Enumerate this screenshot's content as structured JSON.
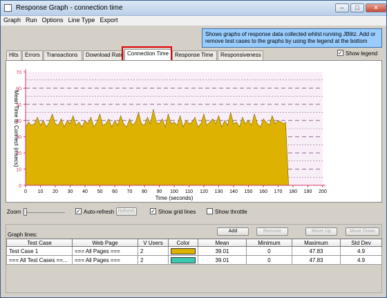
{
  "window": {
    "title": "Response Graph - connection time",
    "controls": [
      "–",
      "□",
      "✕"
    ]
  },
  "menu": [
    "Graph",
    "Run",
    "Options",
    "Line Type",
    "Export"
  ],
  "info_text": "Shows graphs of response data collected whilst running JBlitz. Add or remove test cases to the graphs by using the legend at the bottom",
  "tabs": [
    "Hits",
    "Errors",
    "Transactions",
    "Download Rate",
    "Connection Time",
    "Response Time",
    "Responsiveness"
  ],
  "active_tab": "Connection Time",
  "show_legend": {
    "label": "Show legend",
    "checked": true
  },
  "chart_data": {
    "type": "area",
    "xlabel": "Time (seconds)",
    "ylabel": "Mean Time to Connect (msecs)",
    "xlim": [
      0,
      200
    ],
    "ylim": [
      0,
      70
    ],
    "xticks": [
      0,
      10,
      20,
      30,
      40,
      50,
      60,
      70,
      80,
      90,
      100,
      110,
      120,
      130,
      140,
      150,
      160,
      170,
      180,
      190,
      200
    ],
    "yticks": [
      0,
      10,
      20,
      30,
      40,
      50,
      60,
      70
    ],
    "grid": true,
    "colors": {
      "fill": "#ddb200",
      "stroke": "#7a6000",
      "plot_bg": "#f8eef8",
      "grid": "#8a6a8a",
      "axis": "#cc3366"
    },
    "series": [
      {
        "name": "",
        "x": [
          0,
          2,
          4,
          6,
          8,
          10,
          12,
          14,
          16,
          18,
          20,
          22,
          24,
          26,
          28,
          30,
          32,
          34,
          36,
          38,
          40,
          42,
          44,
          46,
          48,
          50,
          52,
          54,
          56,
          58,
          60,
          62,
          64,
          66,
          68,
          70,
          72,
          74,
          76,
          78,
          80,
          82,
          84,
          86,
          88,
          90,
          92,
          94,
          96,
          98,
          100,
          102,
          104,
          106,
          108,
          110,
          112,
          114,
          116,
          118,
          120,
          122,
          124,
          126,
          128,
          130,
          132,
          134,
          136,
          138,
          140,
          142,
          144,
          146,
          148,
          150,
          152,
          154,
          156,
          158,
          160,
          162,
          164,
          166,
          168,
          170,
          172,
          174,
          175,
          177
        ],
        "values": [
          36,
          39,
          37,
          38,
          42,
          37,
          40,
          36,
          39,
          44,
          38,
          37,
          41,
          36,
          40,
          38,
          43,
          37,
          39,
          36,
          40,
          38,
          42,
          36,
          39,
          44,
          37,
          38,
          41,
          36,
          40,
          37,
          43,
          38,
          36,
          41,
          37,
          39,
          45,
          38,
          37,
          42,
          38,
          47,
          39,
          38,
          41,
          36,
          44,
          38,
          39,
          37,
          43,
          36,
          40,
          38,
          39,
          42,
          36,
          38,
          44,
          37,
          39,
          41,
          38,
          43,
          36,
          40,
          37,
          45,
          38,
          39,
          36,
          42,
          38,
          40,
          37,
          44,
          38,
          36,
          41,
          39,
          37,
          43,
          38,
          40,
          39,
          38,
          39,
          0
        ]
      }
    ]
  },
  "controls": {
    "zoom_label": "Zoom",
    "auto_refresh": {
      "label": "Auto-refresh",
      "checked": true
    },
    "refresh_button": "Refresh",
    "show_grid_lines": {
      "label": "Show grid lines",
      "checked": true
    },
    "show_throttle": {
      "label": "Show throttle",
      "checked": false
    }
  },
  "graph_lines": {
    "label": "Graph lines:",
    "buttons": {
      "add": "Add",
      "remove": "Remove",
      "move_up": "Move Up",
      "move_down": "Move Down"
    },
    "columns": [
      "Test Case",
      "Web Page",
      "V Users",
      "Color",
      "Mean",
      "Minimum",
      "Maximum",
      "Std Dev"
    ],
    "rows": [
      {
        "test_case": "Test Case 1",
        "web_page": "=== All Pages ===",
        "v_users": "2",
        "color": "#ddb200",
        "mean": "39.01",
        "minimum": "0",
        "maximum": "47.83",
        "std_dev": "4.9"
      },
      {
        "test_case": "=== All Test Cases ==...",
        "web_page": "=== All Pages ===",
        "v_users": "2",
        "color": "#3cc8b0",
        "mean": "39.01",
        "minimum": "0",
        "maximum": "47.83",
        "std_dev": "4.9"
      }
    ]
  }
}
